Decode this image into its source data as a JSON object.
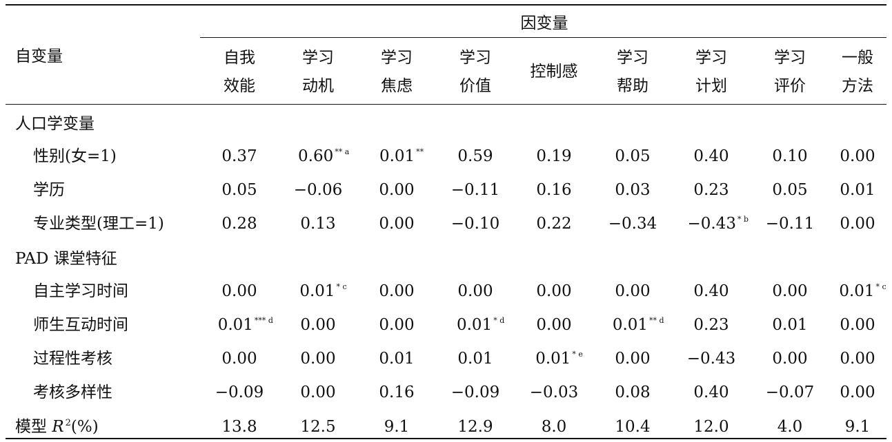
{
  "table": {
    "title_dependent": "因变量",
    "title_independent": "自变量",
    "columns": [
      {
        "line1": "自我",
        "line2": "效能"
      },
      {
        "line1": "学习",
        "line2": "动机"
      },
      {
        "line1": "学习",
        "line2": "焦虑"
      },
      {
        "line1": "学习",
        "line2": "价值"
      },
      {
        "line1": "控制感",
        "line2": ""
      },
      {
        "line1": "学习",
        "line2": "帮助"
      },
      {
        "line1": "学习",
        "line2": "计划"
      },
      {
        "line1": "学习",
        "line2": "评价"
      },
      {
        "line1": "一般",
        "line2": "方法"
      }
    ],
    "group1": "人口学变量",
    "group2": "PAD 课堂特征",
    "rows": [
      {
        "label": "性别(女=1)",
        "cells": [
          {
            "v": "0.37",
            "s": ""
          },
          {
            "v": "0.60",
            "s": "** a"
          },
          {
            "v": "0.01",
            "s": "**"
          },
          {
            "v": "0.59",
            "s": ""
          },
          {
            "v": "0.19",
            "s": ""
          },
          {
            "v": "0.05",
            "s": ""
          },
          {
            "v": "0.40",
            "s": ""
          },
          {
            "v": "0.10",
            "s": ""
          },
          {
            "v": "0.00",
            "s": ""
          }
        ]
      },
      {
        "label": "学历",
        "cells": [
          {
            "v": "0.05",
            "s": ""
          },
          {
            "v": "−0.06",
            "s": ""
          },
          {
            "v": "0.00",
            "s": ""
          },
          {
            "v": "−0.11",
            "s": ""
          },
          {
            "v": "0.16",
            "s": ""
          },
          {
            "v": "0.03",
            "s": ""
          },
          {
            "v": "0.23",
            "s": ""
          },
          {
            "v": "0.05",
            "s": ""
          },
          {
            "v": "0.01",
            "s": ""
          }
        ]
      },
      {
        "label": "专业类型(理工=1)",
        "cells": [
          {
            "v": "0.28",
            "s": ""
          },
          {
            "v": "0.13",
            "s": ""
          },
          {
            "v": "0.00",
            "s": ""
          },
          {
            "v": "−0.10",
            "s": ""
          },
          {
            "v": "0.22",
            "s": ""
          },
          {
            "v": "−0.34",
            "s": ""
          },
          {
            "v": "−0.43",
            "s": "* b"
          },
          {
            "v": "−0.11",
            "s": ""
          },
          {
            "v": "0.00",
            "s": ""
          }
        ]
      },
      {
        "label": "自主学习时间",
        "cells": [
          {
            "v": "0.00",
            "s": ""
          },
          {
            "v": "0.01",
            "s": "* c"
          },
          {
            "v": "0.00",
            "s": ""
          },
          {
            "v": "0.00",
            "s": ""
          },
          {
            "v": "0.00",
            "s": ""
          },
          {
            "v": "0.00",
            "s": ""
          },
          {
            "v": "0.40",
            "s": ""
          },
          {
            "v": "0.00",
            "s": ""
          },
          {
            "v": "0.01",
            "s": "* c"
          }
        ]
      },
      {
        "label": "师生互动时间",
        "cells": [
          {
            "v": "0.01",
            "s": "*** d"
          },
          {
            "v": "0.00",
            "s": ""
          },
          {
            "v": "0.00",
            "s": ""
          },
          {
            "v": "0.01",
            "s": "* d"
          },
          {
            "v": "0.00",
            "s": ""
          },
          {
            "v": "0.01",
            "s": "** d"
          },
          {
            "v": "0.23",
            "s": ""
          },
          {
            "v": "0.01",
            "s": ""
          },
          {
            "v": "0.00",
            "s": ""
          }
        ]
      },
      {
        "label": "过程性考核",
        "cells": [
          {
            "v": "0.00",
            "s": ""
          },
          {
            "v": "0.00",
            "s": ""
          },
          {
            "v": "0.01",
            "s": ""
          },
          {
            "v": "0.01",
            "s": ""
          },
          {
            "v": "0.01",
            "s": "* e"
          },
          {
            "v": "0.00",
            "s": ""
          },
          {
            "v": "−0.43",
            "s": ""
          },
          {
            "v": "0.00",
            "s": ""
          },
          {
            "v": "0.00",
            "s": ""
          }
        ]
      },
      {
        "label": "考核多样性",
        "cells": [
          {
            "v": "−0.09",
            "s": ""
          },
          {
            "v": "0.00",
            "s": ""
          },
          {
            "v": "0.16",
            "s": ""
          },
          {
            "v": "−0.09",
            "s": ""
          },
          {
            "v": "−0.03",
            "s": ""
          },
          {
            "v": "0.08",
            "s": ""
          },
          {
            "v": "0.40",
            "s": ""
          },
          {
            "v": "−0.07",
            "s": ""
          },
          {
            "v": "0.00",
            "s": ""
          }
        ]
      }
    ],
    "model_row": {
      "label_prefix": "模型 ",
      "label_var": "R",
      "label_sup": "2",
      "label_suffix": "(%)",
      "cells": [
        "13.8",
        "12.5",
        "9.1",
        "12.9",
        "8.0",
        "10.4",
        "12.0",
        "4.0",
        "9.1"
      ]
    }
  }
}
